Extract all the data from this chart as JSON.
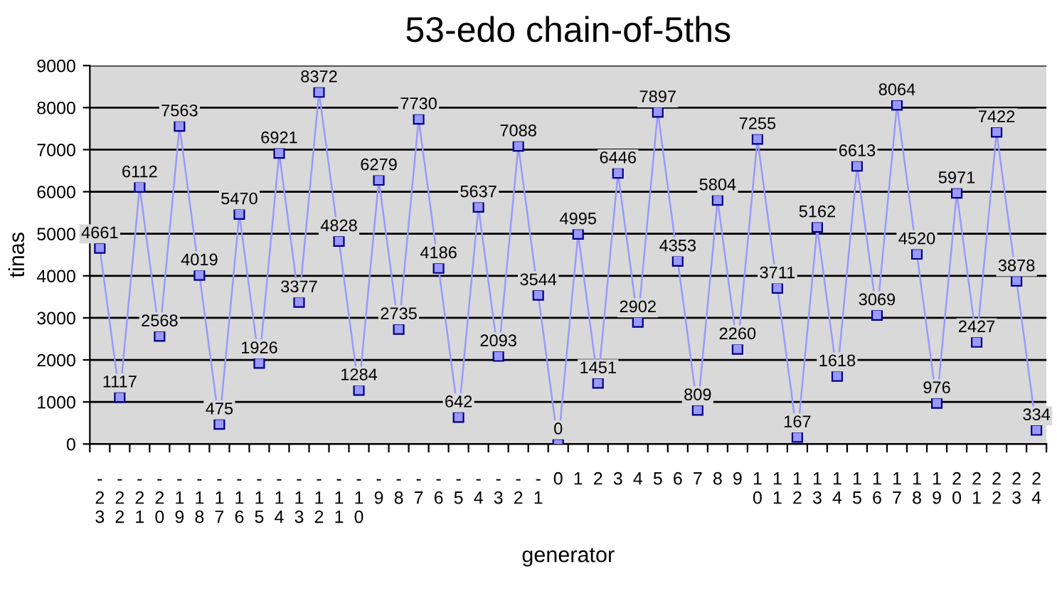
{
  "chart_data": {
    "type": "line",
    "title": "53-edo chain-of-5ths",
    "xlabel": "generator",
    "ylabel": "tinas",
    "categories": [
      "-23",
      "-22",
      "-21",
      "-20",
      "-19",
      "-18",
      "-17",
      "-16",
      "-15",
      "-14",
      "-13",
      "-12",
      "-11",
      "-10",
      "-9",
      "-8",
      "-7",
      "-6",
      "-5",
      "-4",
      "-3",
      "-2",
      "-1",
      "0",
      "1",
      "2",
      "3",
      "4",
      "5",
      "6",
      "7",
      "8",
      "9",
      "10",
      "11",
      "12",
      "13",
      "14",
      "15",
      "16",
      "17",
      "18",
      "19",
      "20",
      "21",
      "22",
      "23",
      "24"
    ],
    "series": [
      {
        "color": "#9999ff",
        "values": [
          4661,
          1117,
          6112,
          2568,
          7563,
          4019,
          475,
          5470,
          1926,
          6921,
          3377,
          8372,
          4828,
          1284,
          6279,
          2735,
          7730,
          4186,
          642,
          5637,
          2093,
          7088,
          3544,
          0,
          4995,
          1451,
          6446,
          2902,
          7897,
          4353,
          809,
          5804,
          2260,
          7255,
          3711,
          167,
          5162,
          1618,
          6613,
          3069,
          8064,
          4520,
          976,
          5971,
          2427,
          7422,
          3878,
          334
        ]
      }
    ],
    "ylim": [
      0,
      9000
    ],
    "yticks": [
      0,
      1000,
      2000,
      3000,
      4000,
      5000,
      6000,
      7000,
      8000,
      9000
    ],
    "grid": "y",
    "marker": "square",
    "line_style": "solid",
    "data_labels": true,
    "legend": false
  }
}
